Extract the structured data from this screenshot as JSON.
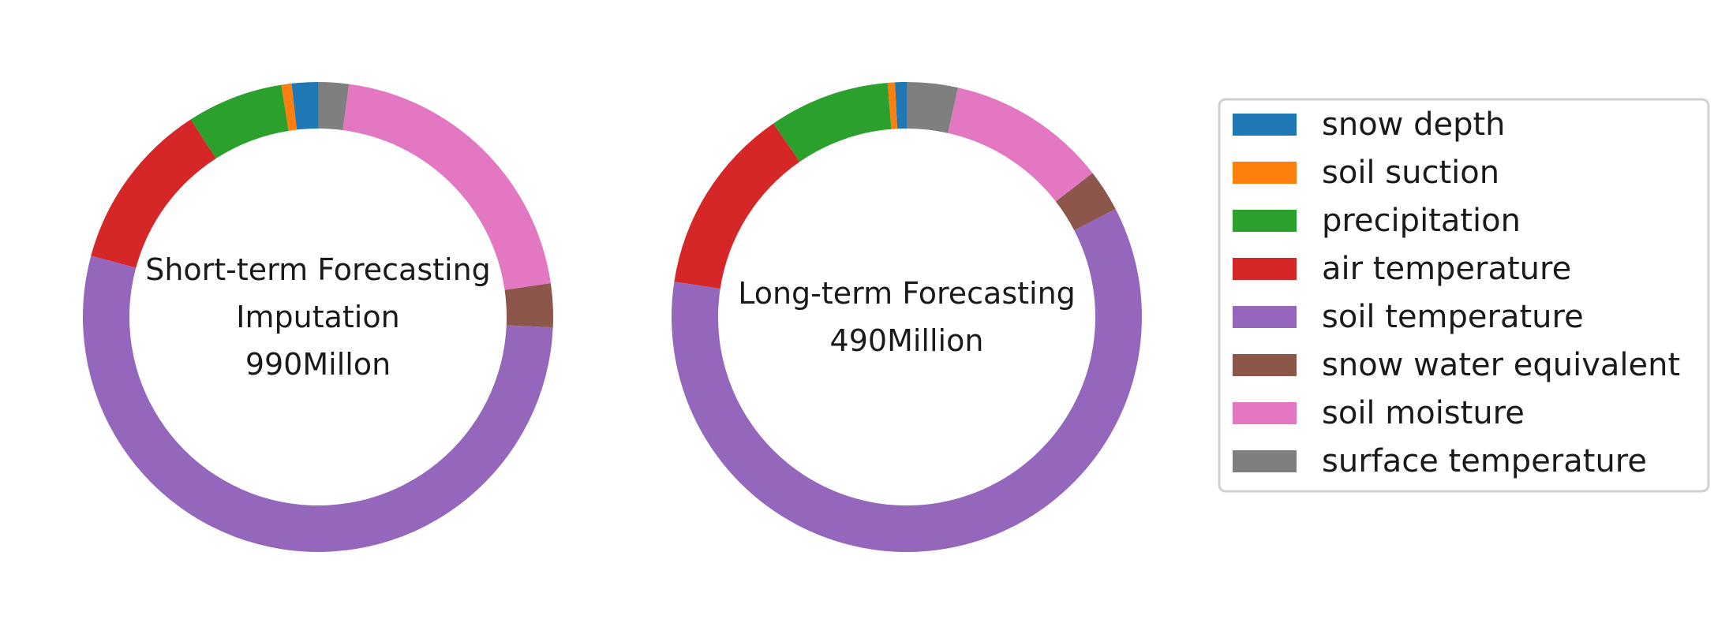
{
  "chart_data": [
    {
      "type": "pie",
      "donut": true,
      "center_lines": [
        "Short-term Forecasting",
        "Imputation",
        "990Millon"
      ],
      "categories": [
        "snow depth",
        "soil suction",
        "precipitation",
        "air temperature",
        "soil temperature",
        "snow water equivalent",
        "soil moisture",
        "surface temperature"
      ],
      "values": [
        1.8,
        0.7,
        6.6,
        11.7,
        53.5,
        3.0,
        20.6,
        2.1
      ],
      "unit": "%"
    },
    {
      "type": "pie",
      "donut": true,
      "center_lines": [
        "Long-term Forecasting",
        "490Million"
      ],
      "categories": [
        "snow depth",
        "soil suction",
        "precipitation",
        "air temperature",
        "soil temperature",
        "snow water equivalent",
        "soil moisture",
        "surface temperature"
      ],
      "values": [
        0.8,
        0.5,
        8.3,
        13.0,
        60.0,
        2.9,
        11.0,
        3.5
      ],
      "unit": "%"
    }
  ],
  "legend": {
    "placement": "right",
    "items": [
      {
        "label": "snow depth",
        "color": "#1f77b4"
      },
      {
        "label": "soil suction",
        "color": "#ff7f0e"
      },
      {
        "label": "precipitation",
        "color": "#2ca02c"
      },
      {
        "label": "air temperature",
        "color": "#d62728"
      },
      {
        "label": "soil temperature",
        "color": "#9467bd"
      },
      {
        "label": "snow water equivalent",
        "color": "#8c564b"
      },
      {
        "label": "soil moisture",
        "color": "#e377c2"
      },
      {
        "label": "surface temperature",
        "color": "#7f7f7f"
      }
    ]
  }
}
